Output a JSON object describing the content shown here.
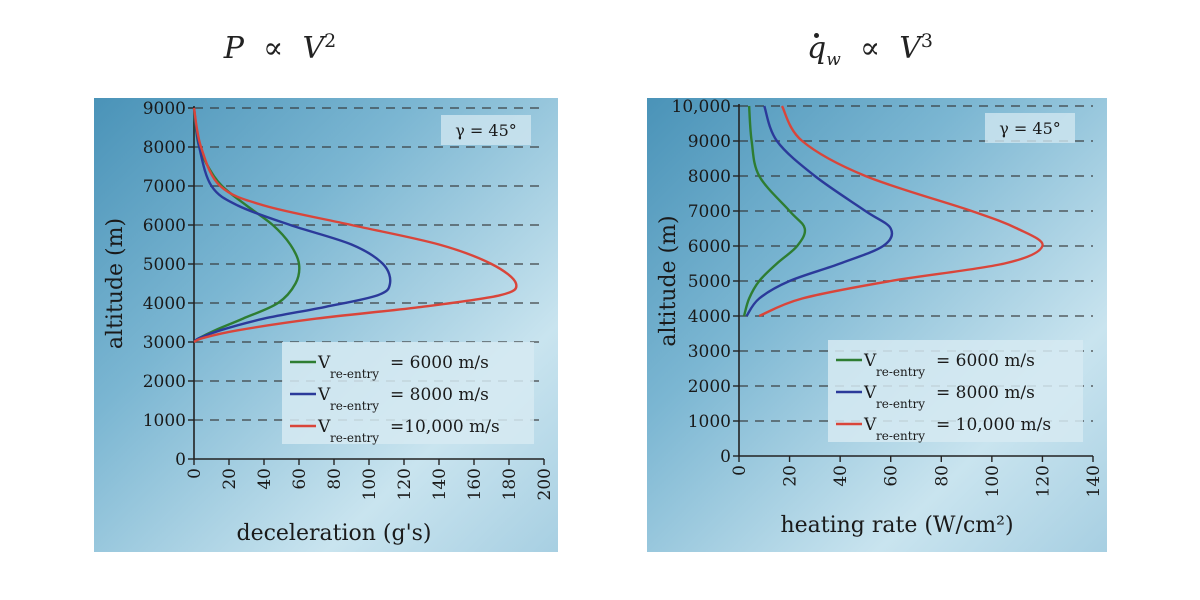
{
  "titles": {
    "left": {
      "lhs": "P",
      "rel": "∝",
      "rhs": "V",
      "exp": "2"
    },
    "right": {
      "lhs": "q",
      "sub": "w",
      "rel": "∝",
      "rhs": "V",
      "exp": "3"
    }
  },
  "colors": {
    "green": "#2e7d32",
    "blue": "#2b3a9a",
    "red": "#d9453a",
    "panel_dark": "#4a93b8",
    "panel_light": "#c9e4ef"
  },
  "chart_data": [
    {
      "type": "line",
      "xlabel": "deceleration (g's)",
      "ylabel": "altitude (m)",
      "annotation": "γ = 45°",
      "xlim": [
        0,
        200
      ],
      "ylim": [
        0,
        9000
      ],
      "xticks": [
        "0",
        "20",
        "40",
        "60",
        "80",
        "100",
        "120",
        "140",
        "160",
        "180",
        "200"
      ],
      "yticks": [
        "0",
        "1000",
        "2000",
        "3000",
        "4000",
        "5000",
        "6000",
        "7000",
        "8000",
        "9000"
      ],
      "legend_position": "bottom-right",
      "series": [
        {
          "name": "V",
          "sub": "re-entry",
          "value": "= 6000 m/s",
          "color": "green",
          "points": [
            [
              0,
              9000
            ],
            [
              1,
              8500
            ],
            [
              3,
              8000
            ],
            [
              8,
              7500
            ],
            [
              16,
              7000
            ],
            [
              30,
              6500
            ],
            [
              45,
              6000
            ],
            [
              55,
              5500
            ],
            [
              60,
              5000
            ],
            [
              58,
              4500
            ],
            [
              48,
              4000
            ],
            [
              28,
              3600
            ],
            [
              12,
              3300
            ],
            [
              3,
              3100
            ],
            [
              0,
              3000
            ]
          ]
        },
        {
          "name": "V",
          "sub": "re-entry",
          "value": "= 8000 m/s",
          "color": "blue",
          "points": [
            [
              0,
              9000
            ],
            [
              3,
              8000
            ],
            [
              10,
              7000
            ],
            [
              25,
              6500
            ],
            [
              55,
              6000
            ],
            [
              90,
              5500
            ],
            [
              108,
              5000
            ],
            [
              112,
              4500
            ],
            [
              105,
              4200
            ],
            [
              75,
              3900
            ],
            [
              40,
              3600
            ],
            [
              15,
              3300
            ],
            [
              3,
              3100
            ],
            [
              0,
              3000
            ]
          ]
        },
        {
          "name": "V",
          "sub": "re-entry",
          "value": "=10,000 m/s",
          "color": "red",
          "points": [
            [
              0,
              9000
            ],
            [
              4,
              8000
            ],
            [
              15,
              7000
            ],
            [
              40,
              6500
            ],
            [
              90,
              6000
            ],
            [
              140,
              5500
            ],
            [
              170,
              5000
            ],
            [
              184,
              4500
            ],
            [
              175,
              4200
            ],
            [
              130,
              3900
            ],
            [
              70,
              3600
            ],
            [
              25,
              3300
            ],
            [
              5,
              3100
            ],
            [
              0,
              3000
            ]
          ]
        }
      ]
    },
    {
      "type": "line",
      "xlabel": "heating rate (W/cm²)",
      "ylabel": "altitude (m)",
      "annotation": "γ = 45°",
      "xlim": [
        0,
        140
      ],
      "ylim": [
        0,
        10000
      ],
      "xticks": [
        "0",
        "20",
        "40",
        "60",
        "80",
        "100",
        "120",
        "140"
      ],
      "yticks": [
        "0",
        "1000",
        "2000",
        "3000",
        "4000",
        "5000",
        "6000",
        "7000",
        "8000",
        "9000",
        "10,000"
      ],
      "legend_position": "bottom-right",
      "series": [
        {
          "name": "V",
          "sub": "re-entry",
          "value": "= 6000 m/s",
          "color": "green",
          "points": [
            [
              4,
              10000
            ],
            [
              5,
              9000
            ],
            [
              8,
              8000
            ],
            [
              20,
              7000
            ],
            [
              26,
              6500
            ],
            [
              23,
              6000
            ],
            [
              15,
              5500
            ],
            [
              8,
              5000
            ],
            [
              4,
              4500
            ],
            [
              2,
              4000
            ]
          ]
        },
        {
          "name": "V",
          "sub": "re-entry",
          "value": "= 8000 m/s",
          "color": "blue",
          "points": [
            [
              10,
              10000
            ],
            [
              15,
              9000
            ],
            [
              30,
              8000
            ],
            [
              50,
              7000
            ],
            [
              60,
              6500
            ],
            [
              57,
              6000
            ],
            [
              40,
              5500
            ],
            [
              20,
              5000
            ],
            [
              8,
              4500
            ],
            [
              3,
              4000
            ]
          ]
        },
        {
          "name": "V",
          "sub": "re-entry",
          "value": "= 10,000 m/s",
          "color": "red",
          "points": [
            [
              17,
              10000
            ],
            [
              25,
              9000
            ],
            [
              50,
              8000
            ],
            [
              92,
              7000
            ],
            [
              110,
              6500
            ],
            [
              120,
              6000
            ],
            [
              105,
              5500
            ],
            [
              60,
              5000
            ],
            [
              25,
              4500
            ],
            [
              8,
              4000
            ]
          ]
        }
      ]
    }
  ]
}
